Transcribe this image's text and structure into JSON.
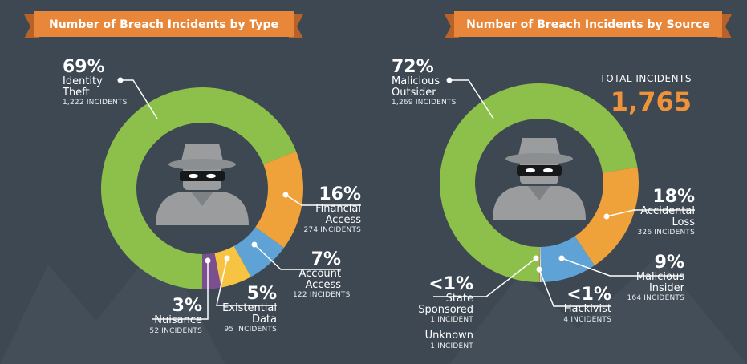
{
  "chart_data": [
    {
      "type": "pie",
      "title": "Number of Breach Incidents by Type",
      "categories": [
        "Identity Theft",
        "Financial Access",
        "Account Access",
        "Existential Data",
        "Nuisance"
      ],
      "values": [
        69,
        16,
        7,
        5,
        3
      ],
      "value_labels": [
        "69%",
        "16%",
        "7%",
        "5%",
        "3%"
      ],
      "incident_labels": [
        "1,222 INCIDENTS",
        "274 INCIDENTS",
        "122 INCIDENTS",
        "95 INCIDENTS",
        "52 INCIDENTS"
      ],
      "colors": [
        "#8dc04b",
        "#f0a23a",
        "#5fa3d6",
        "#f6c342",
        "#7b4f8f"
      ]
    },
    {
      "type": "pie",
      "title": "Number of Breach Incidents by Source",
      "categories": [
        "Malicious Outsider",
        "Accidental Loss",
        "Malicious Insider",
        "Hackivist",
        "State Sponsored",
        "Unknown"
      ],
      "values": [
        72,
        18,
        9,
        0.2,
        0.06,
        0.06
      ],
      "value_labels": [
        "72%",
        "18%",
        "9%",
        "<1%",
        "<1%",
        null
      ],
      "incident_labels": [
        "1,269 INCIDENTS",
        "326 INCIDENTS",
        "164 INCIDENTS",
        "4 INCIDENTS",
        "1 INCIDENT",
        "1 INCIDENT"
      ],
      "colors": [
        "#8dc04b",
        "#f0a23a",
        "#5fa3d6",
        "#d9dde0",
        "#c0392b",
        "#f6c342"
      ],
      "total_title": "TOTAL INCIDENTS",
      "total": {
        "value": 1765,
        "label": "1,765"
      }
    }
  ]
}
